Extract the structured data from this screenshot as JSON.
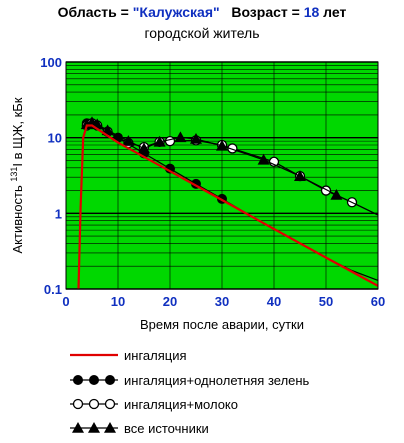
{
  "header": {
    "region_label": "Область = ",
    "region_value": "\"Калужская\"",
    "age_label": "Возраст = ",
    "age_value": "18",
    "age_unit": " лет",
    "subtitle": "городской житель"
  },
  "chart_data": {
    "type": "line",
    "xlabel": "Время после аварии, сутки",
    "ylabel_prefix": "Активность ",
    "ylabel_sup": "131",
    "ylabel_suffix": "I в ЩЖ, кБк",
    "xlim": [
      0,
      60
    ],
    "ylim": [
      0.1,
      100
    ],
    "yscale": "log",
    "grid": true,
    "x_ticks": [
      "0",
      "10",
      "20",
      "30",
      "40",
      "50",
      "60"
    ],
    "y_ticks": [
      "0.1",
      "1",
      "10",
      "100"
    ],
    "series": [
      {
        "name": "ингаляция",
        "color": "#e00000",
        "marker": "none",
        "x": [
          2.4,
          2.8,
          3.3,
          4,
          5,
          10,
          20,
          30,
          40,
          50,
          60
        ],
        "y": [
          0.1,
          1.2,
          10,
          14.5,
          14.5,
          8.6,
          3.6,
          1.5,
          0.62,
          0.26,
          0.11
        ]
      },
      {
        "name": "ингаляция+однолетняя зелень",
        "color": "#000000",
        "marker": "filled-circle",
        "x": [
          2.4,
          2.8,
          3.3,
          4,
          5,
          10,
          15,
          20,
          25,
          30,
          35,
          40,
          45,
          50,
          55,
          60
        ],
        "y": [
          0.1,
          1.2,
          10,
          15.5,
          15.5,
          10,
          6.2,
          3.9,
          2.45,
          1.55,
          0.97,
          0.62,
          0.4,
          0.26,
          0.175,
          0.13
        ]
      },
      {
        "name": "ингаляция+молоко",
        "color": "#000000",
        "marker": "open-circle",
        "x": [
          2.4,
          2.8,
          3.3,
          4,
          5,
          6,
          8,
          12,
          15,
          18,
          20,
          25,
          30,
          32,
          40,
          45,
          50,
          55,
          60
        ],
        "y": [
          0.1,
          1.2,
          10,
          14.5,
          15.5,
          14.5,
          12,
          8.5,
          7.5,
          8.8,
          9,
          9.2,
          8,
          7.2,
          4.8,
          3.1,
          2,
          1.4,
          0.95
        ]
      },
      {
        "name": "все источники",
        "color": "#000000",
        "marker": "filled-triangle",
        "x": [
          2.4,
          2.8,
          3.3,
          4,
          5,
          6,
          8,
          12,
          15,
          18,
          22,
          25,
          30,
          38,
          45,
          52,
          60
        ],
        "y": [
          0.1,
          1.2,
          10,
          15,
          16,
          15,
          12.5,
          9,
          7.2,
          8.8,
          10.1,
          9.6,
          7.8,
          5.1,
          3.1,
          1.75,
          0.95
        ]
      }
    ],
    "legend": [
      "ингаляция",
      "ингаляция+однолетняя зелень",
      "ингаляция+молоко",
      "все источники"
    ]
  }
}
